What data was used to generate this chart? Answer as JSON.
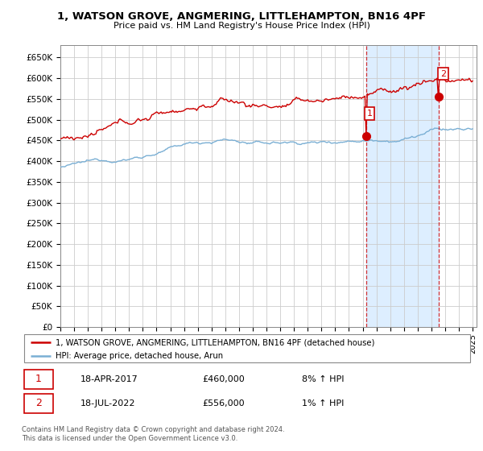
{
  "title": "1, WATSON GROVE, ANGMERING, LITTLEHAMPTON, BN16 4PF",
  "subtitle": "Price paid vs. HM Land Registry's House Price Index (HPI)",
  "legend_line1": "1, WATSON GROVE, ANGMERING, LITTLEHAMPTON, BN16 4PF (detached house)",
  "legend_line2": "HPI: Average price, detached house, Arun",
  "annotation1_date": "18-APR-2017",
  "annotation1_price": "£460,000",
  "annotation1_hpi": "8% ↑ HPI",
  "annotation2_date": "18-JUL-2022",
  "annotation2_price": "£556,000",
  "annotation2_hpi": "1% ↑ HPI",
  "footer": "Contains HM Land Registry data © Crown copyright and database right 2024.\nThis data is licensed under the Open Government Licence v3.0.",
  "hpi_color": "#7aafd4",
  "price_color": "#cc0000",
  "shade_color": "#ddeeff",
  "annotation_color": "#cc0000",
  "ylim": [
    0,
    680000
  ],
  "yticks": [
    0,
    50000,
    100000,
    150000,
    200000,
    250000,
    300000,
    350000,
    400000,
    450000,
    500000,
    550000,
    600000,
    650000
  ],
  "year_start": 1995,
  "year_end": 2025,
  "sale1_year_val": 2017.29,
  "sale1_price": 460000,
  "sale2_year_val": 2022.54,
  "sale2_price": 556000
}
